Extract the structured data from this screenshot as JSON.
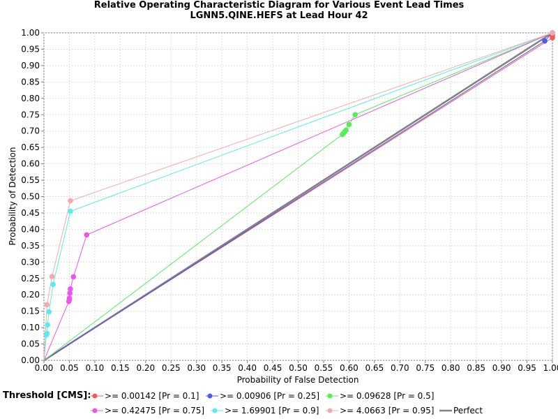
{
  "title_line1": "Relative Operating Characteristic Diagram for Various Event Lead Times",
  "title_line2": "LGNN5.QINE.HEFS at Lead Hour 42",
  "legend_heading": "Threshold [CMS]:",
  "chart_data": {
    "type": "scatter",
    "title": "Relative Operating Characteristic Diagram for Various Event Lead Times",
    "subtitle": "LGNN5.QINE.HEFS at Lead Hour 42",
    "xlabel": "Probability of False Detection",
    "ylabel": "Probability of Detection",
    "xlim": [
      0,
      1
    ],
    "ylim": [
      0,
      1
    ],
    "x_ticks": [
      "0.00",
      "0.05",
      "0.10",
      "0.15",
      "0.20",
      "0.25",
      "0.30",
      "0.35",
      "0.40",
      "0.45",
      "0.50",
      "0.55",
      "0.60",
      "0.65",
      "0.70",
      "0.75",
      "0.80",
      "0.85",
      "0.90",
      "0.95",
      "1.00"
    ],
    "y_ticks": [
      "0.00",
      "0.05",
      "0.10",
      "0.15",
      "0.20",
      "0.25",
      "0.30",
      "0.35",
      "0.40",
      "0.45",
      "0.50",
      "0.55",
      "0.60",
      "0.65",
      "0.70",
      "0.75",
      "0.80",
      "0.85",
      "0.90",
      "0.95",
      "1.00"
    ],
    "grid": true,
    "legend_position": "bottom",
    "series": [
      {
        "name": ">= 0.00142 [Pr = 0.1]",
        "color": "#f05a5a",
        "points": [
          [
            0,
            0
          ],
          [
            1.0,
            0.985
          ],
          [
            1.0,
            0.99
          ],
          [
            1.0,
            0.995
          ],
          [
            1.0,
            1.0
          ]
        ]
      },
      {
        "name": ">= 0.00906 [Pr = 0.25]",
        "color": "#5555f0",
        "points": [
          [
            0,
            0
          ],
          [
            0.985,
            0.975
          ],
          [
            1.0,
            1.0
          ]
        ]
      },
      {
        "name": ">= 0.09628 [Pr = 0.5]",
        "color": "#55ee55",
        "points": [
          [
            0,
            0
          ],
          [
            0.587,
            0.69
          ],
          [
            0.589,
            0.693
          ],
          [
            0.591,
            0.697
          ],
          [
            0.594,
            0.703
          ],
          [
            0.6,
            0.72
          ],
          [
            0.612,
            0.75
          ],
          [
            1.0,
            1.0
          ]
        ]
      },
      {
        "name": ">= 0.42475 [Pr = 0.75]",
        "color": "#ee55ee",
        "points": [
          [
            0,
            0
          ],
          [
            0.049,
            0.18
          ],
          [
            0.05,
            0.185
          ],
          [
            0.05,
            0.19
          ],
          [
            0.051,
            0.205
          ],
          [
            0.052,
            0.218
          ],
          [
            0.058,
            0.255
          ],
          [
            0.084,
            0.383
          ],
          [
            1.0,
            1.0
          ]
        ]
      },
      {
        "name": ">= 1.69901 [Pr = 0.9]",
        "color": "#55eeee",
        "points": [
          [
            0,
            0
          ],
          [
            0.005,
            0.078
          ],
          [
            0.006,
            0.082
          ],
          [
            0.007,
            0.108
          ],
          [
            0.01,
            0.148
          ],
          [
            0.018,
            0.232
          ],
          [
            0.052,
            0.455
          ],
          [
            1.0,
            1.0
          ]
        ]
      },
      {
        "name": ">= 4.0663 [Pr = 0.95]",
        "color": "#f5aaaa",
        "points": [
          [
            0,
            0
          ],
          [
            0.006,
            0.17
          ],
          [
            0.016,
            0.256
          ],
          [
            0.052,
            0.487
          ],
          [
            1.0,
            1.0
          ]
        ]
      }
    ],
    "reference_line": {
      "name": "Perfect",
      "color": "#808080",
      "points": [
        [
          0,
          0
        ],
        [
          1,
          1
        ]
      ]
    }
  }
}
